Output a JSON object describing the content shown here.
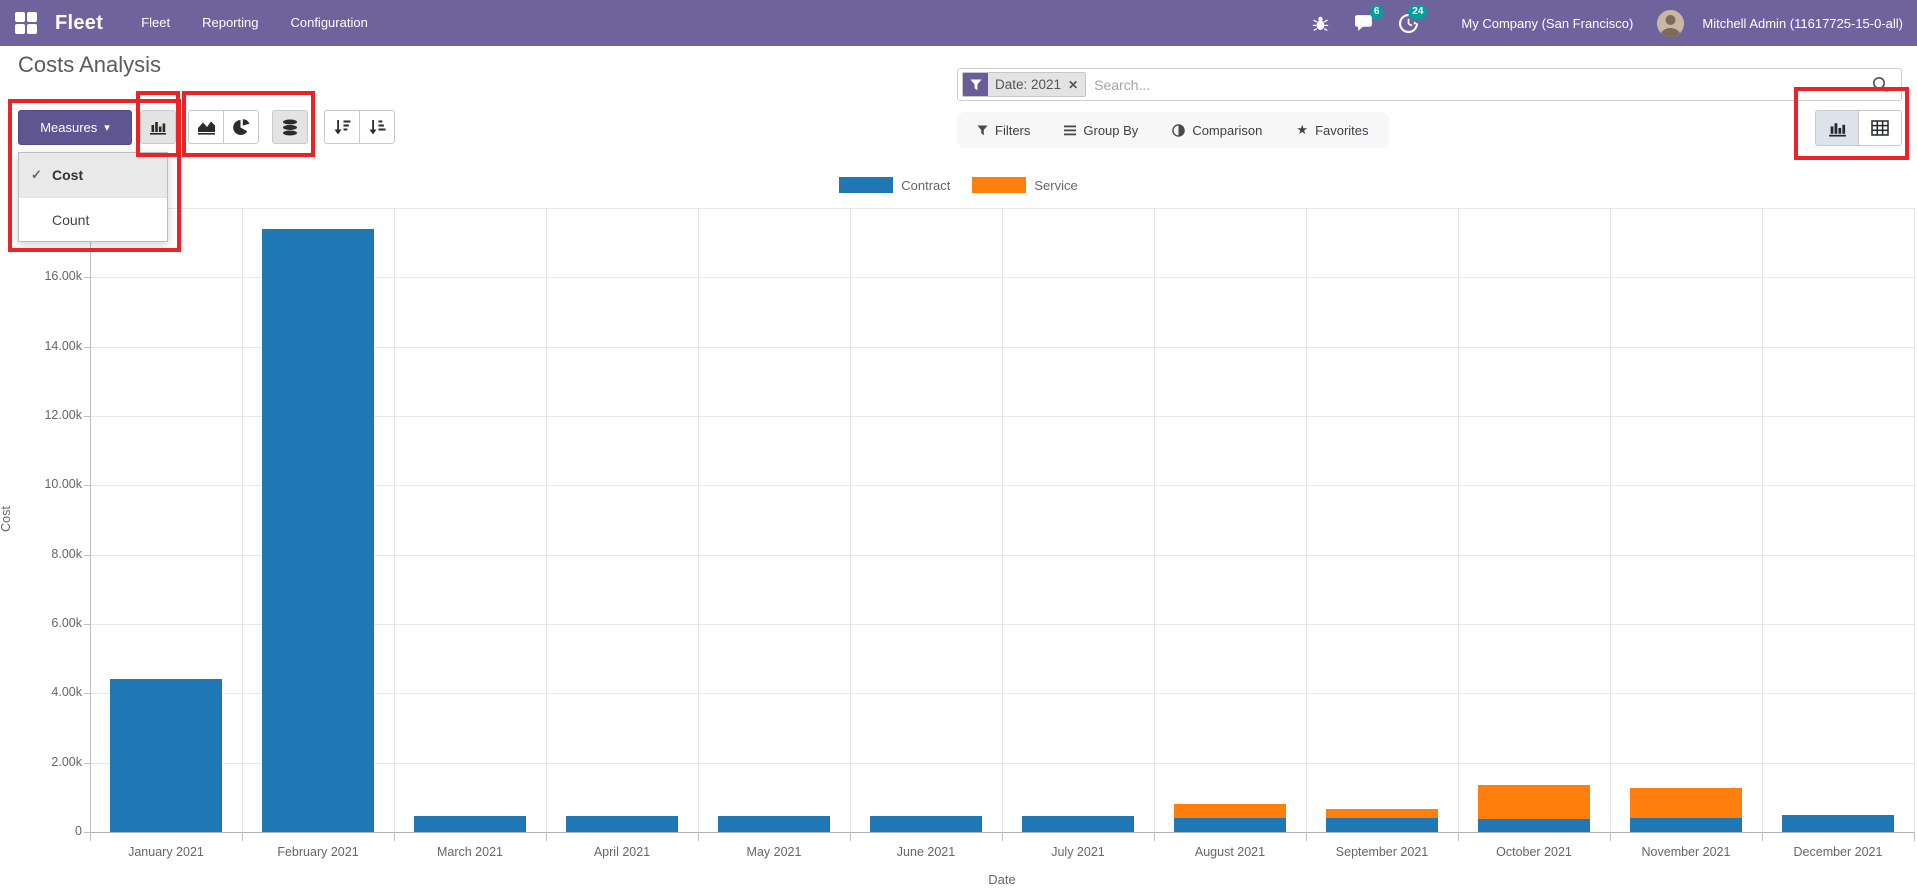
{
  "navbar": {
    "brand": "Fleet",
    "menus": [
      "Fleet",
      "Reporting",
      "Configuration"
    ],
    "messages_badge": "6",
    "activities_badge": "24",
    "company": "My Company (San Francisco)",
    "user": "Mitchell Admin (11617725-15-0-all)",
    "colors": {
      "bg": "#6e639c",
      "badge": "#00a09d"
    }
  },
  "page": {
    "title": "Costs Analysis"
  },
  "toolbar": {
    "measures_label": "Measures",
    "dropdown_items": [
      {
        "label": "Cost",
        "checked": true
      },
      {
        "label": "Count",
        "checked": false
      }
    ],
    "chart_type_buttons": [
      {
        "icon": "bar-chart-icon",
        "active": true
      },
      {
        "icon": "area-chart-icon",
        "active": false
      },
      {
        "icon": "pie-chart-icon",
        "active": false
      },
      {
        "icon": "stacked-icon",
        "active": true
      },
      {
        "icon": "sort-desc-icon",
        "active": false
      },
      {
        "icon": "sort-asc-icon",
        "active": false
      }
    ],
    "view_switcher": [
      {
        "icon": "bar-chart-icon",
        "active": true
      },
      {
        "icon": "grid-icon",
        "active": false
      }
    ]
  },
  "search": {
    "facet_label": "Date: 2021",
    "placeholder": "Search...",
    "buttons": [
      "Filters",
      "Group By",
      "Comparison",
      "Favorites"
    ]
  },
  "icons": {
    "check": "✓",
    "caret": "▾",
    "close": "✕",
    "star": "★"
  },
  "annotation_color": "#ea2328",
  "chart_data": {
    "type": "bar",
    "stacked": true,
    "title": "",
    "xlabel": "Date",
    "ylabel": "Cost",
    "legend_position": "top-center",
    "grid": true,
    "ylim": [
      0,
      18000
    ],
    "categories": [
      "January 2021",
      "February 2021",
      "March 2021",
      "April 2021",
      "May 2021",
      "June 2021",
      "July 2021",
      "August 2021",
      "September 2021",
      "October 2021",
      "November 2021",
      "December 2021"
    ],
    "series": [
      {
        "name": "Contract",
        "color": "#1f77b4",
        "values": [
          4400,
          17400,
          450,
          450,
          450,
          450,
          450,
          400,
          400,
          380,
          400,
          500
        ]
      },
      {
        "name": "Service",
        "color": "#ff7f0e",
        "values": [
          0,
          0,
          0,
          0,
          0,
          0,
          0,
          410,
          260,
          975,
          870,
          0
        ]
      }
    ],
    "yticks": [
      {
        "v": 0,
        "label": "0"
      },
      {
        "v": 2000,
        "label": "2.00k"
      },
      {
        "v": 4000,
        "label": "4.00k"
      },
      {
        "v": 6000,
        "label": "6.00k"
      },
      {
        "v": 8000,
        "label": "8.00k"
      },
      {
        "v": 10000,
        "label": "10.00k"
      },
      {
        "v": 12000,
        "label": "12.00k"
      },
      {
        "v": 14000,
        "label": "14.00k"
      },
      {
        "v": 16000,
        "label": "16.00k"
      },
      {
        "v": 18000,
        "label": ""
      }
    ]
  }
}
